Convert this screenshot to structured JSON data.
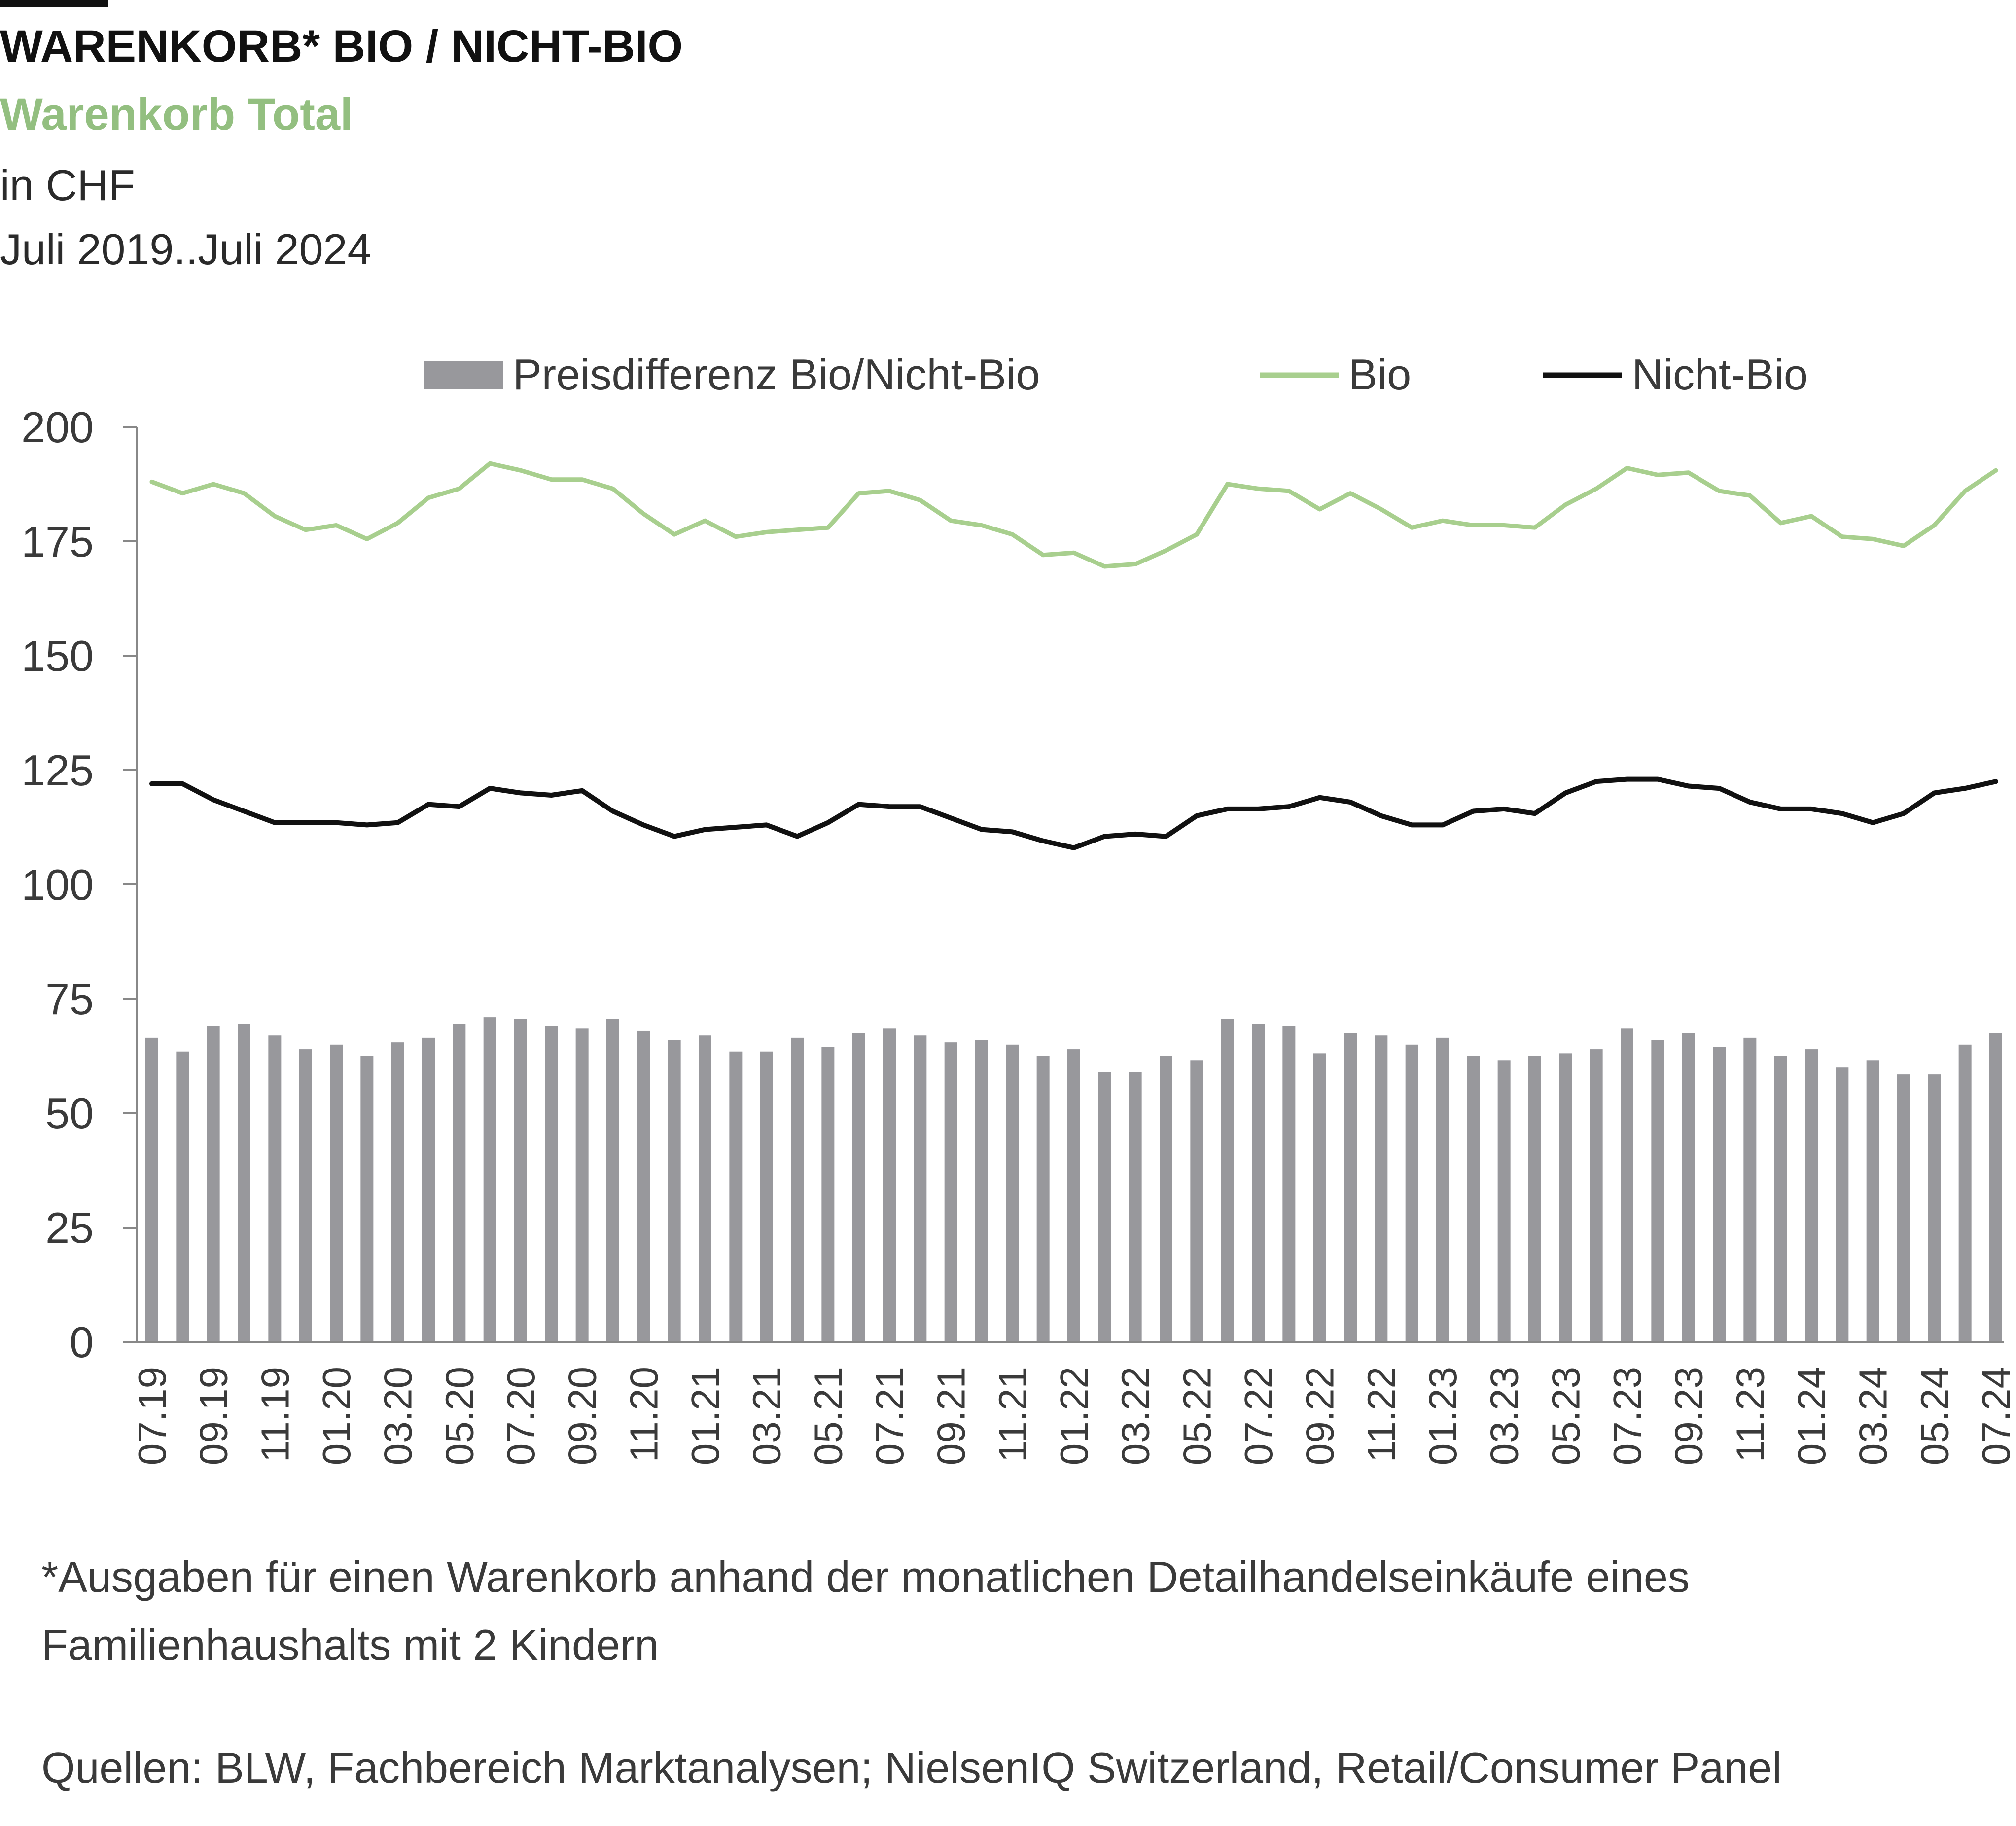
{
  "header": {
    "title": "WARENKORB* BIO / NICHT-BIO",
    "subtitle": "Warenkorb Total",
    "unit": "in CHF",
    "period": "Juli 2019..Juli 2024"
  },
  "footer": {
    "footnote": "*Ausgaben für einen Warenkorb anhand der monatlichen Detailhandelseinkäufe eines Familienhaushalts mit 2 Kindern",
    "source": "Quellen: BLW, Fachbereich Marktanalysen; NielsenIQ Switzerland, Retail/Consumer Panel"
  },
  "colors": {
    "bars": "#98989c",
    "bio": "#a8cf8e",
    "nicht_bio": "#111111",
    "subtitle": "#93bf80",
    "axis": "#888888"
  },
  "chart_data": {
    "type": "bar",
    "ylim": [
      0,
      200
    ],
    "yticks": [
      0,
      25,
      50,
      75,
      100,
      125,
      150,
      175,
      200
    ],
    "legend_position": "top",
    "grid": false,
    "categories": [
      "07.19",
      "08.19",
      "09.19",
      "10.19",
      "11.19",
      "12.19",
      "01.20",
      "02.20",
      "03.20",
      "04.20",
      "05.20",
      "06.20",
      "07.20",
      "08.20",
      "09.20",
      "10.20",
      "11.20",
      "12.20",
      "01.21",
      "02.21",
      "03.21",
      "04.21",
      "05.21",
      "06.21",
      "07.21",
      "08.21",
      "09.21",
      "10.21",
      "11.21",
      "12.21",
      "01.22",
      "02.22",
      "03.22",
      "04.22",
      "05.22",
      "06.22",
      "07.22",
      "08.22",
      "09.22",
      "10.22",
      "11.22",
      "12.22",
      "01.23",
      "02.23",
      "03.23",
      "04.23",
      "05.23",
      "06.23",
      "07.23",
      "08.23",
      "09.23",
      "10.23",
      "11.23",
      "12.23",
      "01.24",
      "02.24",
      "03.24",
      "04.24",
      "05.24",
      "06.24",
      "07.24"
    ],
    "tick_labels": [
      "07.19",
      "09.19",
      "11.19",
      "01.20",
      "03.20",
      "05.20",
      "07.20",
      "09.20",
      "11.20",
      "01.21",
      "03.21",
      "05.21",
      "07.21",
      "09.21",
      "11.21",
      "01.22",
      "03.22",
      "05.22",
      "07.22",
      "09.22",
      "11.22",
      "01.23",
      "03.23",
      "05.23",
      "07.23",
      "09.23",
      "11.23",
      "01.24",
      "03.24",
      "05.24",
      "07.24"
    ],
    "series": [
      {
        "name": "Preisdifferenz Bio/Nicht-Bio",
        "kind": "bar",
        "values": [
          66.5,
          63.5,
          69,
          69.5,
          67,
          64,
          65,
          62.5,
          65.5,
          66.5,
          69.5,
          71,
          70.5,
          69,
          68.5,
          70.5,
          68,
          66,
          67,
          63.5,
          63.5,
          66.5,
          64.5,
          67.5,
          68.5,
          67,
          65.5,
          66,
          65,
          62.5,
          64,
          59,
          59,
          62.5,
          61.5,
          70.5,
          69.5,
          69,
          63,
          67.5,
          67,
          65,
          66.5,
          62.5,
          61.5,
          62.5,
          63,
          64,
          68.5,
          66,
          67.5,
          64.5,
          66.5,
          62.5,
          64,
          60,
          61.5,
          58.5,
          58.5,
          65,
          67.5
        ]
      },
      {
        "name": "Bio",
        "kind": "line",
        "values": [
          188,
          185.5,
          187.5,
          185.5,
          180.5,
          177.5,
          178.5,
          175.5,
          179,
          184.5,
          186.5,
          192,
          190.5,
          188.5,
          188.5,
          186.5,
          181,
          176.5,
          179.5,
          176,
          177,
          177.5,
          178,
          185.5,
          186,
          184,
          179.5,
          178.5,
          176.5,
          172,
          172.5,
          169.5,
          170,
          173,
          176.5,
          187.5,
          186.5,
          186,
          182,
          185.5,
          182,
          178,
          179.5,
          178.5,
          178.5,
          178,
          183,
          186.5,
          191,
          189.5,
          190,
          186,
          185,
          179,
          180.5,
          176,
          175.5,
          174,
          178.5,
          186,
          190.5
        ]
      },
      {
        "name": "Nicht-Bio",
        "kind": "line",
        "values": [
          122,
          122,
          118.5,
          116,
          113.5,
          113.5,
          113.5,
          113,
          113.5,
          117.5,
          117,
          121,
          120,
          119.5,
          120.5,
          116,
          113,
          110.5,
          112,
          112.5,
          113,
          110.5,
          113.5,
          117.5,
          117,
          117,
          114.5,
          112,
          111.5,
          109.5,
          108,
          110.5,
          111,
          110.5,
          115,
          116.5,
          116.5,
          117,
          119,
          118,
          115,
          113,
          113,
          116,
          116.5,
          115.5,
          120,
          122.5,
          123,
          123,
          121.5,
          121,
          118,
          116.5,
          116.5,
          115.5,
          113.5,
          115.5,
          120,
          121,
          122.5
        ]
      }
    ]
  }
}
